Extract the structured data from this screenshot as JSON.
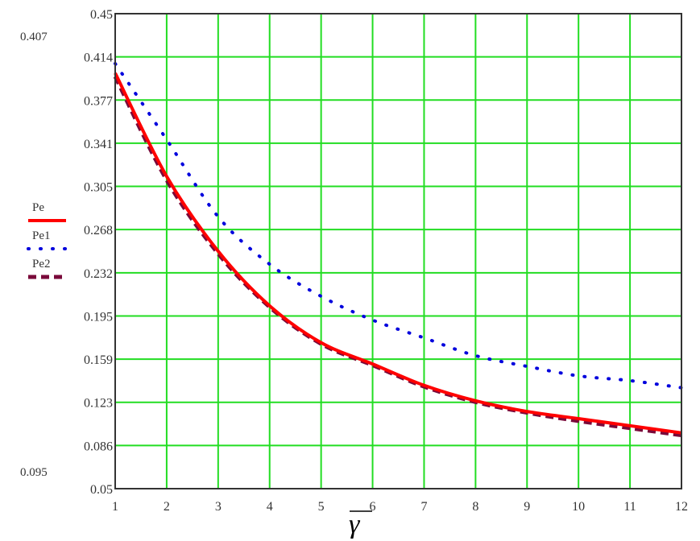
{
  "chart_data": {
    "type": "line",
    "xlabel": "γ",
    "ylabel": "",
    "xlim": [
      1,
      12
    ],
    "ylim": [
      0.05,
      0.45
    ],
    "grid": true,
    "x_ticks": [
      "1",
      "2",
      "3",
      "4",
      "5",
      "6",
      "7",
      "8",
      "9",
      "10",
      "11",
      "12"
    ],
    "y_ticks": [
      "0.05",
      "0.086",
      "0.123",
      "0.159",
      "0.195",
      "0.232",
      "0.268",
      "0.305",
      "0.341",
      "0.377",
      "0.414",
      "0.45"
    ],
    "y_range_markers": [
      "0.407",
      "0.095"
    ],
    "legend_placement": "left",
    "x": [
      1,
      2,
      3,
      4,
      5,
      6,
      7,
      8,
      9,
      10,
      11,
      12
    ],
    "series": [
      {
        "name": "Pe",
        "color": "#ff0000",
        "style": "solid",
        "values": [
          0.4,
          0.313,
          0.25,
          0.204,
          0.173,
          0.155,
          0.137,
          0.124,
          0.115,
          0.109,
          0.103,
          0.097
        ]
      },
      {
        "name": "Pe1",
        "color": "#0000dd",
        "style": "dotted",
        "values": [
          0.408,
          0.344,
          0.279,
          0.239,
          0.212,
          0.192,
          0.177,
          0.162,
          0.153,
          0.145,
          0.141,
          0.135
        ]
      },
      {
        "name": "Pe2",
        "color": "#7a0a3a",
        "style": "dashed",
        "values": [
          0.397,
          0.31,
          0.248,
          0.203,
          0.172,
          0.154,
          0.136,
          0.123,
          0.114,
          0.107,
          0.101,
          0.095
        ]
      }
    ],
    "colors": {
      "grid": "#22dd22",
      "axis": "#333333"
    }
  }
}
